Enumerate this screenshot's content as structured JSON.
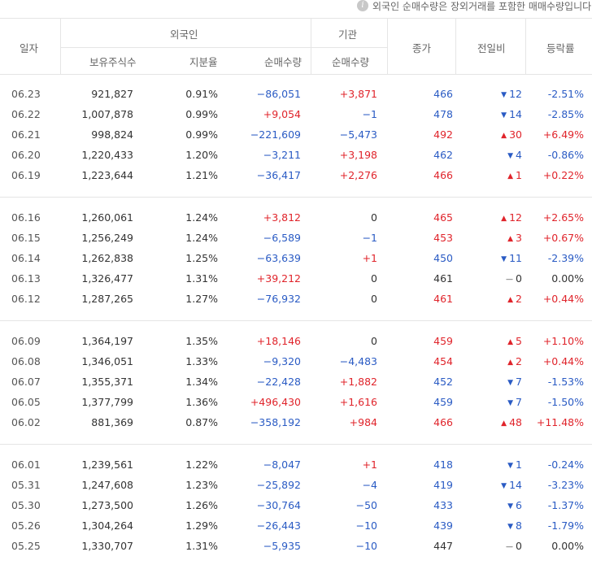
{
  "notice": {
    "icon": "info-icon",
    "text": "외국인 순매수량은 장외거래를 포함한 매매수량입니다."
  },
  "header": {
    "date": "일자",
    "foreign": "외국인",
    "institution": "기관",
    "holdings": "보유주식수",
    "ratio": "지분율",
    "foreign_net": "순매수량",
    "inst_net": "순매수량",
    "close": "종가",
    "change": "전일비",
    "rate": "등락률"
  },
  "groups": [
    [
      {
        "date": "06.23",
        "holdings": "921,827",
        "ratio": "0.91%",
        "fnet": "−86,051",
        "fdir": "down",
        "inet": "+3,871",
        "idir": "up",
        "close": "466",
        "cdir": "down",
        "change": "12",
        "chdir": "down",
        "rate": "-2.51%",
        "rdir": "down"
      },
      {
        "date": "06.22",
        "holdings": "1,007,878",
        "ratio": "0.99%",
        "fnet": "+9,054",
        "fdir": "up",
        "inet": "−1",
        "idir": "down",
        "close": "478",
        "cdir": "down",
        "change": "14",
        "chdir": "down",
        "rate": "-2.85%",
        "rdir": "down"
      },
      {
        "date": "06.21",
        "holdings": "998,824",
        "ratio": "0.99%",
        "fnet": "−221,609",
        "fdir": "down",
        "inet": "−5,473",
        "idir": "down",
        "close": "492",
        "cdir": "up",
        "change": "30",
        "chdir": "up",
        "rate": "+6.49%",
        "rdir": "up"
      },
      {
        "date": "06.20",
        "holdings": "1,220,433",
        "ratio": "1.20%",
        "fnet": "−3,211",
        "fdir": "down",
        "inet": "+3,198",
        "idir": "up",
        "close": "462",
        "cdir": "down",
        "change": "4",
        "chdir": "down",
        "rate": "-0.86%",
        "rdir": "down"
      },
      {
        "date": "06.19",
        "holdings": "1,223,644",
        "ratio": "1.21%",
        "fnet": "−36,417",
        "fdir": "down",
        "inet": "+2,276",
        "idir": "up",
        "close": "466",
        "cdir": "up",
        "change": "1",
        "chdir": "up",
        "rate": "+0.22%",
        "rdir": "up"
      }
    ],
    [
      {
        "date": "06.16",
        "holdings": "1,260,061",
        "ratio": "1.24%",
        "fnet": "+3,812",
        "fdir": "up",
        "inet": "0",
        "idir": "neutral",
        "close": "465",
        "cdir": "up",
        "change": "12",
        "chdir": "up",
        "rate": "+2.65%",
        "rdir": "up"
      },
      {
        "date": "06.15",
        "holdings": "1,256,249",
        "ratio": "1.24%",
        "fnet": "−6,589",
        "fdir": "down",
        "inet": "−1",
        "idir": "down",
        "close": "453",
        "cdir": "up",
        "change": "3",
        "chdir": "up",
        "rate": "+0.67%",
        "rdir": "up"
      },
      {
        "date": "06.14",
        "holdings": "1,262,838",
        "ratio": "1.25%",
        "fnet": "−63,639",
        "fdir": "down",
        "inet": "+1",
        "idir": "up",
        "close": "450",
        "cdir": "down",
        "change": "11",
        "chdir": "down",
        "rate": "-2.39%",
        "rdir": "down"
      },
      {
        "date": "06.13",
        "holdings": "1,326,477",
        "ratio": "1.31%",
        "fnet": "+39,212",
        "fdir": "up",
        "inet": "0",
        "idir": "neutral",
        "close": "461",
        "cdir": "neutral",
        "change": "0",
        "chdir": "neutral",
        "rate": "0.00%",
        "rdir": "neutral"
      },
      {
        "date": "06.12",
        "holdings": "1,287,265",
        "ratio": "1.27%",
        "fnet": "−76,932",
        "fdir": "down",
        "inet": "0",
        "idir": "neutral",
        "close": "461",
        "cdir": "up",
        "change": "2",
        "chdir": "up",
        "rate": "+0.44%",
        "rdir": "up"
      }
    ],
    [
      {
        "date": "06.09",
        "holdings": "1,364,197",
        "ratio": "1.35%",
        "fnet": "+18,146",
        "fdir": "up",
        "inet": "0",
        "idir": "neutral",
        "close": "459",
        "cdir": "up",
        "change": "5",
        "chdir": "up",
        "rate": "+1.10%",
        "rdir": "up"
      },
      {
        "date": "06.08",
        "holdings": "1,346,051",
        "ratio": "1.33%",
        "fnet": "−9,320",
        "fdir": "down",
        "inet": "−4,483",
        "idir": "down",
        "close": "454",
        "cdir": "up",
        "change": "2",
        "chdir": "up",
        "rate": "+0.44%",
        "rdir": "up"
      },
      {
        "date": "06.07",
        "holdings": "1,355,371",
        "ratio": "1.34%",
        "fnet": "−22,428",
        "fdir": "down",
        "inet": "+1,882",
        "idir": "up",
        "close": "452",
        "cdir": "down",
        "change": "7",
        "chdir": "down",
        "rate": "-1.53%",
        "rdir": "down"
      },
      {
        "date": "06.05",
        "holdings": "1,377,799",
        "ratio": "1.36%",
        "fnet": "+496,430",
        "fdir": "up",
        "inet": "+1,616",
        "idir": "up",
        "close": "459",
        "cdir": "down",
        "change": "7",
        "chdir": "down",
        "rate": "-1.50%",
        "rdir": "down"
      },
      {
        "date": "06.02",
        "holdings": "881,369",
        "ratio": "0.87%",
        "fnet": "−358,192",
        "fdir": "down",
        "inet": "+984",
        "idir": "up",
        "close": "466",
        "cdir": "up",
        "change": "48",
        "chdir": "up",
        "rate": "+11.48%",
        "rdir": "up"
      }
    ],
    [
      {
        "date": "06.01",
        "holdings": "1,239,561",
        "ratio": "1.22%",
        "fnet": "−8,047",
        "fdir": "down",
        "inet": "+1",
        "idir": "up",
        "close": "418",
        "cdir": "down",
        "change": "1",
        "chdir": "down",
        "rate": "-0.24%",
        "rdir": "down"
      },
      {
        "date": "05.31",
        "holdings": "1,247,608",
        "ratio": "1.23%",
        "fnet": "−25,892",
        "fdir": "down",
        "inet": "−4",
        "idir": "down",
        "close": "419",
        "cdir": "down",
        "change": "14",
        "chdir": "down",
        "rate": "-3.23%",
        "rdir": "down"
      },
      {
        "date": "05.30",
        "holdings": "1,273,500",
        "ratio": "1.26%",
        "fnet": "−30,764",
        "fdir": "down",
        "inet": "−50",
        "idir": "down",
        "close": "433",
        "cdir": "down",
        "change": "6",
        "chdir": "down",
        "rate": "-1.37%",
        "rdir": "down"
      },
      {
        "date": "05.26",
        "holdings": "1,304,264",
        "ratio": "1.29%",
        "fnet": "−26,443",
        "fdir": "down",
        "inet": "−10",
        "idir": "down",
        "close": "439",
        "cdir": "down",
        "change": "8",
        "chdir": "down",
        "rate": "-1.79%",
        "rdir": "down"
      },
      {
        "date": "05.25",
        "holdings": "1,330,707",
        "ratio": "1.31%",
        "fnet": "−5,935",
        "fdir": "down",
        "inet": "−10",
        "idir": "down",
        "close": "447",
        "cdir": "neutral",
        "change": "0",
        "chdir": "neutral",
        "rate": "0.00%",
        "rdir": "neutral"
      }
    ]
  ],
  "colors": {
    "up": "#e0242b",
    "down": "#2a5bc4",
    "neutral": "#333333",
    "border": "#e5e5e5"
  }
}
